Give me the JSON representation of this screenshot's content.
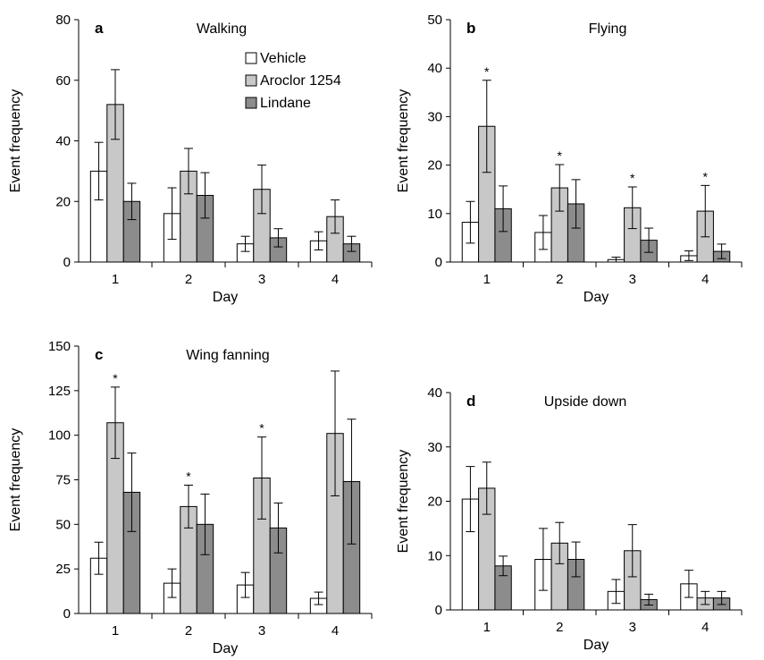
{
  "legend": {
    "items": [
      {
        "label": "Vehicle",
        "color": "#ffffff"
      },
      {
        "label": "Aroclor 1254",
        "color": "#c8c8c8"
      },
      {
        "label": "Lindane",
        "color": "#8c8c8c"
      }
    ]
  },
  "chart_data": [
    {
      "type": "bar",
      "panel_letter": "a",
      "title": "Walking",
      "xlabel": "Day",
      "ylabel": "Event frequency",
      "categories": [
        "1",
        "2",
        "3",
        "4"
      ],
      "ylim": [
        0,
        80
      ],
      "yticks": [
        0,
        20,
        40,
        60,
        80
      ],
      "grid": false,
      "legend_position": "top-right",
      "series": [
        {
          "name": "Vehicle",
          "values": [
            30,
            16,
            6,
            7
          ],
          "error": [
            9.5,
            8.5,
            2.5,
            3
          ]
        },
        {
          "name": "Aroclor 1254",
          "values": [
            52,
            30,
            24,
            15
          ],
          "error": [
            11.5,
            7.5,
            8,
            5.5
          ]
        },
        {
          "name": "Lindane",
          "values": [
            20,
            22,
            8,
            6
          ],
          "error": [
            6,
            7.5,
            3,
            2.5
          ]
        }
      ],
      "significance": [
        [],
        [],
        [],
        []
      ]
    },
    {
      "type": "bar",
      "panel_letter": "b",
      "title": "Flying",
      "xlabel": "Day",
      "ylabel": "Event frequency",
      "categories": [
        "1",
        "2",
        "3",
        "4"
      ],
      "ylim": [
        0,
        50
      ],
      "yticks": [
        0,
        10,
        20,
        30,
        40,
        50
      ],
      "grid": false,
      "series": [
        {
          "name": "Vehicle",
          "values": [
            8.2,
            6.1,
            0.5,
            1.3
          ],
          "error": [
            4.3,
            3.5,
            0.5,
            1
          ]
        },
        {
          "name": "Aroclor 1254",
          "values": [
            28,
            15.3,
            11.2,
            10.5
          ],
          "error": [
            9.5,
            4.8,
            4.3,
            5.3
          ]
        },
        {
          "name": "Lindane",
          "values": [
            11,
            12,
            4.5,
            2.2
          ],
          "error": [
            4.7,
            5,
            2.5,
            1.5
          ]
        }
      ],
      "significance": [
        [
          "*"
        ],
        [
          "*"
        ],
        [
          "*"
        ],
        [
          "*"
        ]
      ]
    },
    {
      "type": "bar",
      "panel_letter": "c",
      "title": "Wing fanning",
      "xlabel": "Day",
      "ylabel": "Event frequency",
      "categories": [
        "1",
        "2",
        "3",
        "4"
      ],
      "ylim": [
        0,
        150
      ],
      "yticks": [
        0,
        25,
        50,
        75,
        100,
        125,
        150
      ],
      "grid": false,
      "series": [
        {
          "name": "Vehicle",
          "values": [
            31,
            17,
            16,
            8.5
          ],
          "error": [
            9,
            8,
            7,
            3.5
          ]
        },
        {
          "name": "Aroclor 1254",
          "values": [
            107,
            60,
            76,
            101
          ],
          "error": [
            20,
            12,
            23,
            35
          ]
        },
        {
          "name": "Lindane",
          "values": [
            68,
            50,
            48,
            74
          ],
          "error": [
            22,
            17,
            14,
            35
          ]
        }
      ],
      "significance": [
        [
          "*"
        ],
        [
          "*"
        ],
        [
          "*"
        ],
        []
      ]
    },
    {
      "type": "bar",
      "panel_letter": "d",
      "title": "Upside down",
      "xlabel": "Day",
      "ylabel": "Event frequency",
      "categories": [
        "1",
        "2",
        "3",
        "4"
      ],
      "ylim": [
        0,
        40
      ],
      "yticks": [
        0,
        10,
        20,
        30,
        40
      ],
      "grid": false,
      "series": [
        {
          "name": "Vehicle",
          "values": [
            20.4,
            9.3,
            3.4,
            4.8
          ],
          "error": [
            6,
            5.7,
            2.2,
            2.5
          ]
        },
        {
          "name": "Aroclor 1254",
          "values": [
            22.4,
            12.3,
            10.9,
            2.2
          ],
          "error": [
            4.8,
            3.8,
            4.8,
            1.2
          ]
        },
        {
          "name": "Lindane",
          "values": [
            8.1,
            9.3,
            1.9,
            2.2
          ],
          "error": [
            1.8,
            3.2,
            1,
            1.2
          ]
        }
      ],
      "significance": [
        [],
        [],
        [],
        []
      ]
    }
  ]
}
